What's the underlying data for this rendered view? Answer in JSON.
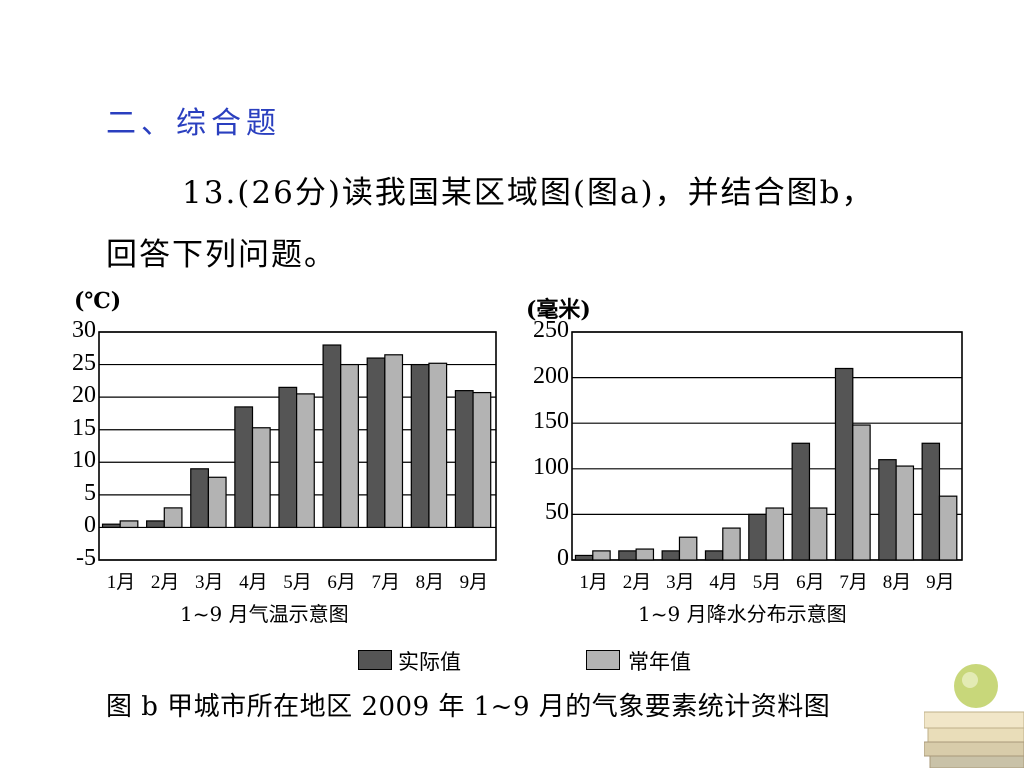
{
  "section_heading": "二、综合题",
  "problem": {
    "line1": "13.(26分)读我国某区域图(图a)，并结合图b，",
    "line2": "回答下列问题。"
  },
  "legend": {
    "actual": {
      "label": "实际值",
      "color": "#555555"
    },
    "normal": {
      "label": "常年值",
      "color": "#b3b3b3"
    }
  },
  "figure_title": "图 b  甲城市所在地区 2009 年 1~9 月的气象要素统计资料图",
  "chart_data": [
    {
      "type": "bar",
      "unit_label": "(℃)",
      "title": "1~9 月气温示意图",
      "categories": [
        "1月",
        "2月",
        "3月",
        "4月",
        "5月",
        "6月",
        "7月",
        "8月",
        "9月"
      ],
      "series": [
        {
          "name": "实际值",
          "values": [
            0.5,
            1,
            9,
            18.5,
            21.5,
            28,
            26,
            25,
            21
          ]
        },
        {
          "name": "常年值",
          "values": [
            1,
            3,
            7.7,
            15.3,
            20.5,
            25,
            26.5,
            25.2,
            20.7
          ]
        }
      ],
      "yticks": [
        30,
        25,
        20,
        15,
        10,
        5,
        0,
        -5
      ],
      "ylim": [
        -5,
        30
      ],
      "grid": true
    },
    {
      "type": "bar",
      "unit_label": "(毫米)",
      "title": "1~9 月降水分布示意图",
      "categories": [
        "1月",
        "2月",
        "3月",
        "4月",
        "5月",
        "6月",
        "7月",
        "8月",
        "9月"
      ],
      "series": [
        {
          "name": "实际值",
          "values": [
            5,
            10,
            10,
            10,
            50,
            128,
            210,
            110,
            128
          ]
        },
        {
          "name": "常年值",
          "values": [
            10,
            12,
            25,
            35,
            57,
            57,
            148,
            103,
            70
          ]
        }
      ],
      "yticks": [
        250,
        200,
        150,
        100,
        50,
        0
      ],
      "ylim": [
        0,
        250
      ],
      "grid": true
    }
  ]
}
